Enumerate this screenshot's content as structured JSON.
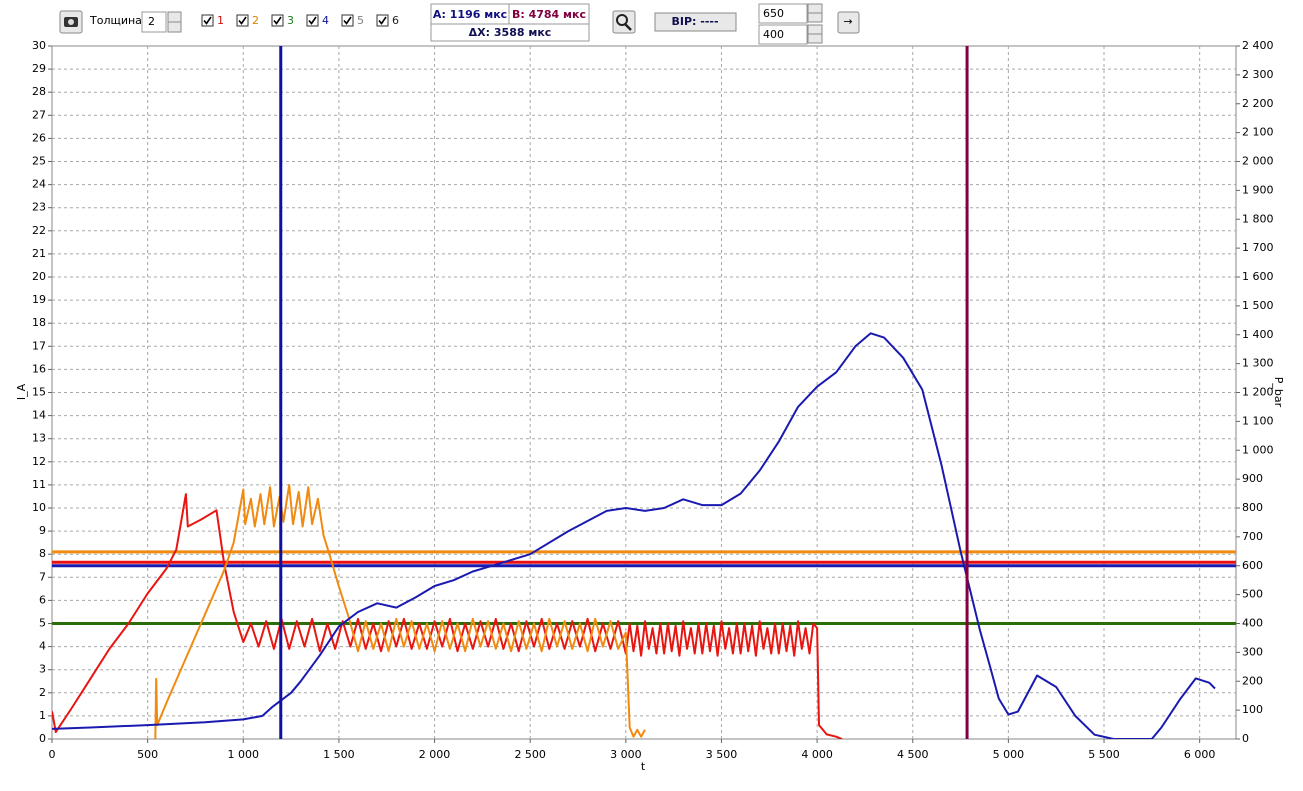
{
  "toolbar": {
    "thickness_label": "Толщина:",
    "thickness": "2",
    "cursor_a": "A: 1196 мкс",
    "cursor_b": "B: 4784 мкс",
    "delta": "ΔX: 3588 мкс",
    "vip": "BIP: ----",
    "field1": "650",
    "field2": "400",
    "go": "→"
  },
  "chart_data": {
    "type": "line",
    "ylabel": "I_A",
    "y2label": "P_bar",
    "xlabel": "t",
    "xlim": [
      0,
      6190
    ],
    "xticks": [
      0,
      500,
      {
        "value": 1000,
        "label": "1 000"
      },
      {
        "value": 1500,
        "label": "1 500"
      },
      {
        "value": 2000,
        "label": "2 000"
      },
      {
        "value": 2500,
        "label": "2 500"
      },
      {
        "value": 3000,
        "label": "3 000"
      },
      {
        "value": 3500,
        "label": "3 500"
      },
      {
        "value": 4000,
        "label": "4 000"
      },
      {
        "value": 4500,
        "label": "4 500"
      },
      {
        "value": 5000,
        "label": "5 000"
      },
      {
        "value": 5500,
        "label": "5 500"
      },
      {
        "value": 6000,
        "label": "6 000"
      }
    ],
    "ylim": [
      0,
      30
    ],
    "yticks": [
      0,
      1,
      2,
      3,
      4,
      5,
      6,
      7,
      8,
      9,
      10,
      11,
      12,
      13,
      14,
      15,
      16,
      17,
      18,
      19,
      20,
      21,
      22,
      23,
      24,
      25,
      26,
      27,
      28,
      29,
      30
    ],
    "y2lim": [
      0,
      2400
    ],
    "y2ticks": [
      0,
      100,
      200,
      300,
      400,
      500,
      600,
      700,
      800,
      900,
      {
        "value": 1000,
        "label": "1 000"
      },
      {
        "value": 1100,
        "label": "1 100"
      },
      {
        "value": 1200,
        "label": "1 200"
      },
      {
        "value": 1300,
        "label": "1 300"
      },
      {
        "value": 1400,
        "label": "1 400"
      },
      {
        "value": 1500,
        "label": "1 500"
      },
      {
        "value": 1600,
        "label": "1 600"
      },
      {
        "value": 1700,
        "label": "1 700"
      },
      {
        "value": 1800,
        "label": "1 800"
      },
      {
        "value": 1900,
        "label": "1 900"
      },
      {
        "value": 2000,
        "label": "2 000"
      },
      {
        "value": 2100,
        "label": "2 100"
      },
      {
        "value": 2200,
        "label": "2 200"
      },
      {
        "value": 2300,
        "label": "2 300"
      },
      {
        "value": 2400,
        "label": "2 400"
      }
    ],
    "grid": true,
    "channels": [
      {
        "label": "1",
        "color": "#d01010"
      },
      {
        "label": "2",
        "color": "#e08000"
      },
      {
        "label": "3",
        "color": "#208020"
      },
      {
        "label": "4",
        "color": "#1010a0"
      },
      {
        "label": "5",
        "color": "#808080"
      },
      {
        "label": "6",
        "color": "#202020"
      }
    ],
    "levels": [
      {
        "value": 8.1,
        "color": "#f08a10"
      },
      {
        "value": 7.65,
        "color": "#e81010"
      },
      {
        "value": 7.5,
        "color": "#1a1ab0"
      },
      {
        "value": 5,
        "color": "#2a6e0a"
      }
    ],
    "cursors": [
      {
        "value": 1196,
        "color": "#1010a0"
      },
      {
        "value": 4784,
        "color": "#800040"
      }
    ],
    "series": [
      {
        "color": "#e81510",
        "x": [
          0,
          20,
          100,
          200,
          300,
          400,
          500,
          600,
          650,
          700,
          710,
          780,
          860,
          900,
          950,
          1000,
          1040,
          1080,
          1120,
          1160,
          1200,
          1240,
          1280,
          1320,
          1360,
          1400,
          1440,
          1480,
          1520,
          1560,
          1600,
          1640,
          1680,
          1720,
          1760,
          1800,
          1840,
          1880,
          1920,
          1960,
          2000,
          2040,
          2080,
          2120,
          2160,
          2200,
          2240,
          2280,
          2320,
          2360,
          2400,
          2440,
          2480,
          2520,
          2560,
          2600,
          2640,
          2680,
          2720,
          2760,
          2800,
          2840,
          2880,
          2920,
          2960,
          3000,
          3020,
          3040,
          3060,
          3080,
          3100,
          3120,
          3140,
          3160,
          3180,
          3200,
          3220,
          3240,
          3260,
          3280,
          3300,
          3320,
          3340,
          3360,
          3380,
          3400,
          3420,
          3440,
          3460,
          3480,
          3500,
          3520,
          3540,
          3560,
          3580,
          3600,
          3620,
          3640,
          3660,
          3680,
          3700,
          3720,
          3740,
          3760,
          3780,
          3800,
          3820,
          3840,
          3860,
          3880,
          3900,
          3920,
          3940,
          3960,
          3980,
          4000,
          4010,
          4050,
          4100,
          4130
        ],
        "values": [
          1.2,
          0.3,
          1.3,
          2.6,
          3.9,
          5.0,
          6.3,
          7.4,
          8.2,
          10.6,
          9.2,
          9.5,
          9.9,
          7.6,
          5.5,
          4.2,
          5.0,
          4.0,
          5.1,
          3.9,
          5.2,
          3.9,
          5.1,
          4.0,
          5.2,
          3.8,
          5.0,
          3.9,
          5.1,
          4.0,
          5.2,
          3.9,
          5.0,
          3.8,
          5.1,
          4.0,
          5.2,
          3.9,
          5.0,
          3.9,
          5.1,
          4.0,
          5.2,
          3.8,
          5.0,
          3.9,
          5.1,
          4.0,
          5.2,
          3.9,
          5.0,
          3.8,
          5.1,
          4.0,
          5.2,
          3.9,
          5.0,
          3.9,
          5.1,
          4.0,
          5.2,
          3.8,
          5.0,
          3.9,
          5.1,
          3.7,
          5.0,
          3.8,
          4.9,
          3.6,
          5.1,
          3.9,
          4.8,
          3.7,
          5.0,
          3.7,
          5.0,
          3.8,
          4.9,
          3.6,
          5.1,
          3.9,
          4.8,
          3.7,
          5.0,
          3.7,
          5.0,
          3.8,
          4.9,
          3.6,
          5.1,
          3.9,
          4.8,
          3.7,
          5.0,
          3.7,
          5.0,
          3.8,
          4.9,
          3.6,
          5.1,
          3.9,
          4.8,
          3.7,
          5.0,
          3.7,
          5.0,
          3.8,
          4.9,
          3.6,
          5.1,
          3.9,
          4.8,
          3.7,
          5.0,
          4.8,
          0.6,
          0.2,
          0.1,
          0
        ]
      },
      {
        "color": "#f08a10",
        "x": [
          540,
          545,
          550,
          600,
          700,
          800,
          900,
          950,
          1000,
          1010,
          1040,
          1060,
          1090,
          1110,
          1140,
          1160,
          1190,
          1210,
          1240,
          1260,
          1290,
          1310,
          1340,
          1360,
          1390,
          1420,
          1450,
          1500,
          1550,
          1600,
          1640,
          1680,
          1720,
          1760,
          1800,
          1840,
          1880,
          1920,
          1960,
          2000,
          2040,
          2080,
          2120,
          2160,
          2200,
          2240,
          2280,
          2320,
          2360,
          2400,
          2440,
          2480,
          2520,
          2560,
          2600,
          2640,
          2680,
          2720,
          2760,
          2800,
          2840,
          2880,
          2920,
          2960,
          3000,
          3020,
          3040,
          3060,
          3080,
          3100
        ],
        "values": [
          0,
          2.6,
          0.6,
          1.6,
          3.5,
          5.4,
          7.3,
          8.5,
          10.8,
          9.3,
          10.4,
          9.2,
          10.6,
          9.3,
          10.9,
          9.2,
          10.5,
          9.4,
          11.0,
          9.3,
          10.7,
          9.2,
          10.9,
          9.3,
          10.4,
          8.8,
          8.0,
          6.6,
          5.3,
          3.8,
          5.1,
          3.9,
          5.0,
          3.8,
          5.2,
          4.0,
          5.1,
          3.9,
          5.0,
          3.8,
          5.1,
          3.9,
          5.0,
          3.8,
          5.2,
          4.0,
          5.1,
          3.9,
          5.0,
          3.8,
          5.1,
          3.9,
          5.0,
          3.8,
          5.2,
          4.0,
          5.1,
          3.9,
          5.0,
          3.8,
          5.2,
          4.0,
          5.1,
          3.9,
          4.6,
          0.5,
          0.1,
          0.4,
          0.1,
          0.4
        ]
      },
      {
        "color": "#1a1ab0",
        "axis": "y2",
        "x": [
          0,
          200,
          500,
          800,
          1000,
          1100,
          1150,
          1250,
          1300,
          1400,
          1500,
          1600,
          1700,
          1800,
          1900,
          2000,
          2100,
          2200,
          2300,
          2500,
          2700,
          2900,
          3000,
          3100,
          3200,
          3300,
          3400,
          3500,
          3600,
          3700,
          3800,
          3900,
          4000,
          4100,
          4200,
          4280,
          4350,
          4450,
          4550,
          4650,
          4750,
          4850,
          4900,
          4950,
          5000,
          5050,
          5150,
          5250,
          5350,
          5450,
          5550,
          5750,
          5800,
          5900,
          5980,
          6050,
          6080
        ],
        "values": [
          35,
          40,
          48,
          58,
          68,
          80,
          110,
          160,
          200,
          290,
          390,
          440,
          470,
          455,
          490,
          530,
          550,
          580,
          600,
          640,
          720,
          790,
          800,
          790,
          800,
          830,
          810,
          810,
          850,
          930,
          1030,
          1150,
          1220,
          1270,
          1360,
          1405,
          1390,
          1320,
          1210,
          950,
          650,
          380,
          260,
          140,
          85,
          95,
          220,
          180,
          80,
          15,
          0,
          0,
          40,
          140,
          210,
          195,
          175
        ]
      }
    ]
  }
}
